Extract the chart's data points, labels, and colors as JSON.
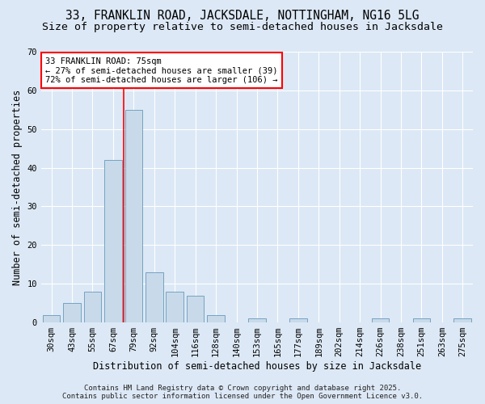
{
  "title_line1": "33, FRANKLIN ROAD, JACKSDALE, NOTTINGHAM, NG16 5LG",
  "title_line2": "Size of property relative to semi-detached houses in Jacksdale",
  "xlabel": "Distribution of semi-detached houses by size in Jacksdale",
  "ylabel": "Number of semi-detached properties",
  "bar_color": "#c8daea",
  "bar_edge_color": "#6699bb",
  "categories": [
    "30sqm",
    "43sqm",
    "55sqm",
    "67sqm",
    "79sqm",
    "92sqm",
    "104sqm",
    "116sqm",
    "128sqm",
    "140sqm",
    "153sqm",
    "165sqm",
    "177sqm",
    "189sqm",
    "202sqm",
    "214sqm",
    "226sqm",
    "238sqm",
    "251sqm",
    "263sqm",
    "275sqm"
  ],
  "values": [
    2,
    5,
    8,
    42,
    55,
    13,
    8,
    7,
    2,
    0,
    1,
    0,
    1,
    0,
    0,
    0,
    1,
    0,
    1,
    0,
    1
  ],
  "ylim": [
    0,
    70
  ],
  "yticks": [
    0,
    10,
    20,
    30,
    40,
    50,
    60,
    70
  ],
  "property_label": "33 FRANKLIN ROAD: 75sqm",
  "smaller_pct": 27,
  "smaller_count": 39,
  "larger_pct": 72,
  "larger_count": 106,
  "vline_bar_index": 4,
  "footer_line1": "Contains HM Land Registry data © Crown copyright and database right 2025.",
  "footer_line2": "Contains public sector information licensed under the Open Government Licence v3.0.",
  "background_color": "#dce8f5",
  "plot_bg_color": "#dce8f5",
  "grid_color": "#ffffff",
  "title_fontsize": 10.5,
  "subtitle_fontsize": 9.5,
  "axis_label_fontsize": 8.5,
  "tick_fontsize": 7.5,
  "annotation_fontsize": 7.5,
  "footer_fontsize": 6.5
}
